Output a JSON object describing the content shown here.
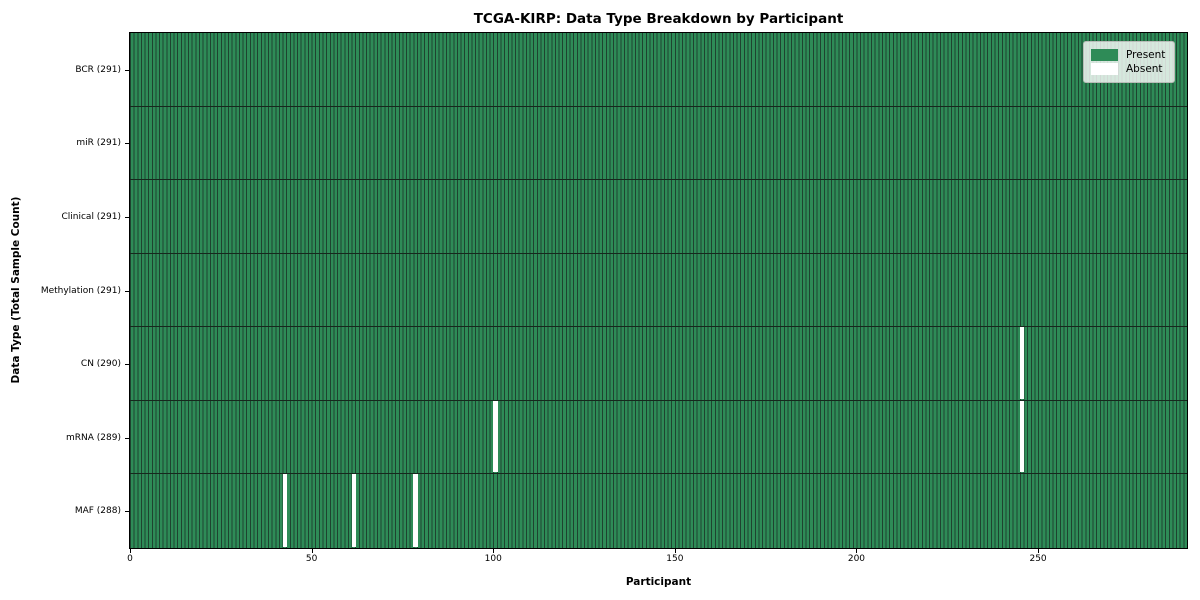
{
  "chart_data": {
    "type": "heatmap",
    "title": "TCGA-KIRP: Data Type Breakdown by Participant",
    "xlabel": "Participant",
    "ylabel": "Data Type (Total Sample Count)",
    "n_participants": 291,
    "x_range": [
      0,
      291
    ],
    "x_ticks": [
      0,
      50,
      100,
      150,
      200,
      250
    ],
    "rows": [
      {
        "label": "BCR (291)",
        "data_type": "BCR",
        "present_count": 291,
        "absent_participants": []
      },
      {
        "label": "miR (291)",
        "data_type": "miR",
        "present_count": 291,
        "absent_participants": []
      },
      {
        "label": "Clinical (291)",
        "data_type": "Clinical",
        "present_count": 291,
        "absent_participants": []
      },
      {
        "label": "Methylation (291)",
        "data_type": "Methylation",
        "present_count": 291,
        "absent_participants": []
      },
      {
        "label": "CN (290)",
        "data_type": "CN",
        "present_count": 290,
        "absent_participants": [
          245
        ]
      },
      {
        "label": "mRNA (289)",
        "data_type": "mRNA",
        "present_count": 289,
        "absent_participants": [
          100,
          245
        ]
      },
      {
        "label": "MAF (288)",
        "data_type": "MAF",
        "present_count": 288,
        "absent_participants": [
          42,
          61,
          78
        ]
      }
    ],
    "legend": [
      {
        "label": "Present",
        "color": "#2e8b57"
      },
      {
        "label": "Absent",
        "color": "#ffffff"
      }
    ],
    "colors": {
      "present": "#2e8b57",
      "absent": "#ffffff",
      "cell_edge": "#1e4330",
      "row_divider": "#16281d",
      "axis": "#000000"
    },
    "legend_position": "upper right",
    "grid": false
  }
}
